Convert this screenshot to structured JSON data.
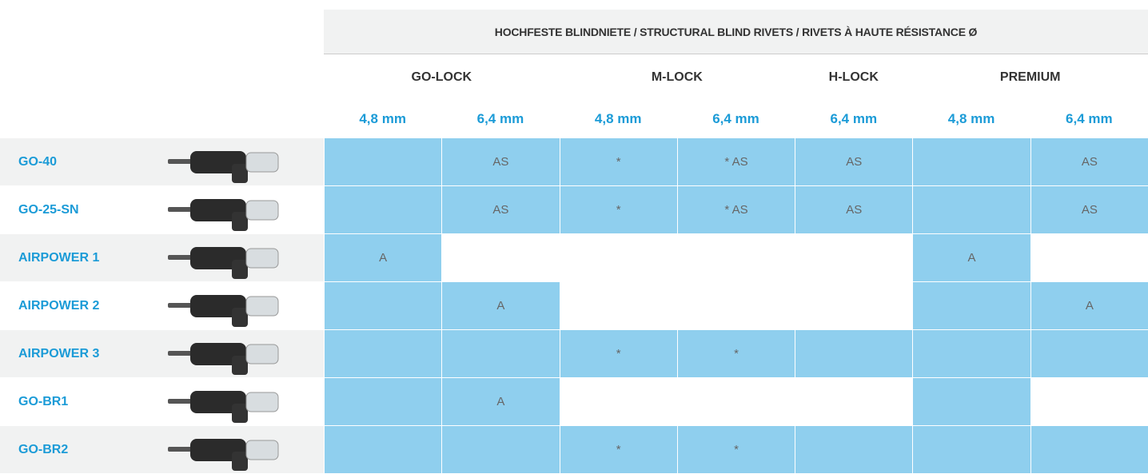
{
  "table": {
    "title": "HOCHFESTE BLINDNIETE / STRUCTURAL BLIND RIVETS / RIVETS À HAUTE RÉSISTANCE Ø",
    "groups": [
      {
        "label": "GO-LOCK",
        "span": 2
      },
      {
        "label": "M-LOCK",
        "span": 2
      },
      {
        "label": "H-LOCK",
        "span": 1
      },
      {
        "label": "PREMIUM",
        "span": 2
      }
    ],
    "sizes": [
      "4,8 mm",
      "6,4 mm",
      "4,8 mm",
      "6,4 mm",
      "6,4 mm",
      "4,8 mm",
      "6,4 mm"
    ],
    "rows": [
      {
        "label": "GO-40",
        "cells": [
          {
            "filled": true
          },
          {
            "filled": true,
            "text": "AS"
          },
          {
            "filled": true,
            "text": "*"
          },
          {
            "filled": true,
            "text": "* AS"
          },
          {
            "filled": true,
            "text": "AS"
          },
          {
            "filled": true
          },
          {
            "filled": true,
            "text": "AS"
          }
        ]
      },
      {
        "label": "GO-25-SN",
        "cells": [
          {
            "filled": true
          },
          {
            "filled": true,
            "text": "AS"
          },
          {
            "filled": true,
            "text": "*"
          },
          {
            "filled": true,
            "text": "* AS"
          },
          {
            "filled": true,
            "text": "AS"
          },
          {
            "filled": true
          },
          {
            "filled": true,
            "text": "AS"
          }
        ]
      },
      {
        "label": "AIRPOWER 1",
        "cells": [
          {
            "filled": true,
            "text": "A"
          },
          {
            "filled": false
          },
          {
            "filled": false
          },
          {
            "filled": false
          },
          {
            "filled": false
          },
          {
            "filled": true,
            "text": "A"
          },
          {
            "filled": false
          }
        ]
      },
      {
        "label": "AIRPOWER 2",
        "cells": [
          {
            "filled": true
          },
          {
            "filled": true,
            "text": "A"
          },
          {
            "filled": false
          },
          {
            "filled": false
          },
          {
            "filled": false
          },
          {
            "filled": true
          },
          {
            "filled": true,
            "text": "A"
          }
        ]
      },
      {
        "label": "AIRPOWER 3",
        "cells": [
          {
            "filled": true
          },
          {
            "filled": true
          },
          {
            "filled": true,
            "text": "*"
          },
          {
            "filled": true,
            "text": "*"
          },
          {
            "filled": true
          },
          {
            "filled": true
          },
          {
            "filled": true
          }
        ]
      },
      {
        "label": "GO-BR1",
        "cells": [
          {
            "filled": true
          },
          {
            "filled": true,
            "text": "A"
          },
          {
            "filled": false
          },
          {
            "filled": false
          },
          {
            "filled": false
          },
          {
            "filled": true
          },
          {
            "filled": false
          }
        ]
      },
      {
        "label": "GO-BR2",
        "cells": [
          {
            "filled": true
          },
          {
            "filled": true
          },
          {
            "filled": true,
            "text": "*"
          },
          {
            "filled": true,
            "text": "*"
          },
          {
            "filled": true
          },
          {
            "filled": true
          },
          {
            "filled": true
          }
        ]
      }
    ]
  }
}
